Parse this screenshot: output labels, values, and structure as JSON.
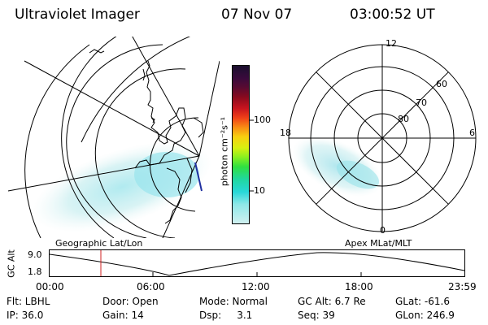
{
  "header": {
    "instrument": "Ultraviolet Imager",
    "date": "07 Nov 07",
    "time": "03:00:52 UT"
  },
  "colorbar": {
    "unit": "photon cm⁻²s⁻¹",
    "ticks": [
      "100",
      "10"
    ],
    "colors": [
      "#1a0f2e",
      "#3a0a3c",
      "#5a0a30",
      "#8a0a1e",
      "#c8141e",
      "#f04018",
      "#f88c14",
      "#f8d010",
      "#d8f010",
      "#88f020",
      "#30e040",
      "#20d8a0",
      "#28d8d8",
      "#90e8e8",
      "#d0f0f0"
    ]
  },
  "geo_map": {
    "label": "Geographic Lat/Lon"
  },
  "polar": {
    "label": "Apex MLat/MLT",
    "mlt_labels": [
      "12",
      "18",
      "6",
      "0"
    ],
    "lat_labels": [
      "60",
      "70",
      "80"
    ]
  },
  "altitude_plot": {
    "ylabel": "GC Alt",
    "yticks": [
      "9.0",
      "1.8"
    ],
    "xticks": [
      "00:00",
      "06:00",
      "12:00",
      "18:00",
      "23:59"
    ],
    "marker_color": "#d02020"
  },
  "status": {
    "filter": "Flt: LBHL",
    "door": "Door: Open",
    "mode": "Mode: Normal",
    "gc_alt": "GC Alt: 6.7 Re",
    "glat": "GLat: -61.6",
    "ip": "IP: 36.0",
    "gain": "Gain: 14",
    "dsp": "Dsp:     3.1",
    "seq": "Seq: 39",
    "glon": "GLon: 246.9"
  }
}
